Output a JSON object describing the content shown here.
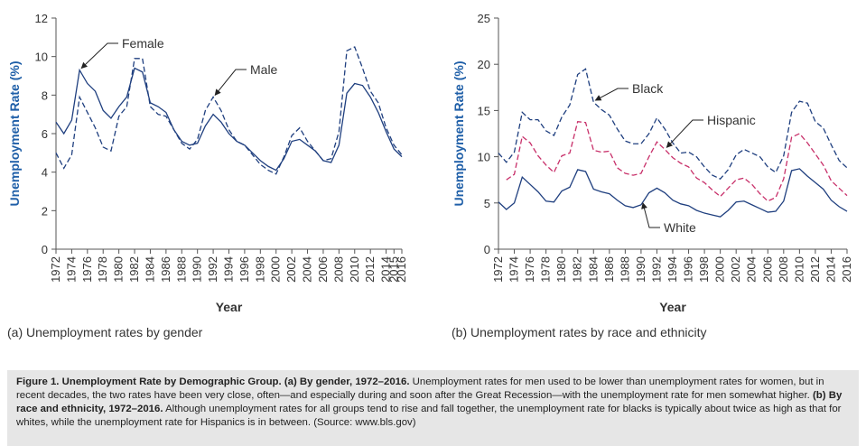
{
  "chart_data": [
    {
      "type": "line",
      "caption": "(a) Unemployment rates by gender",
      "x_label": "Year",
      "y_label": "Unemployment Rate (%)",
      "x": [
        1972,
        1973,
        1974,
        1975,
        1976,
        1977,
        1978,
        1979,
        1980,
        1981,
        1982,
        1983,
        1984,
        1985,
        1986,
        1987,
        1988,
        1989,
        1990,
        1991,
        1992,
        1993,
        1994,
        1995,
        1996,
        1997,
        1998,
        1999,
        2000,
        2001,
        2002,
        2003,
        2004,
        2005,
        2006,
        2007,
        2008,
        2009,
        2010,
        2011,
        2012,
        2013,
        2014,
        2015,
        2016
      ],
      "xlim": [
        1972,
        2016
      ],
      "xticks": [
        1972,
        1974,
        1976,
        1978,
        1980,
        1982,
        1984,
        1986,
        1988,
        1990,
        1992,
        1994,
        1996,
        1998,
        2000,
        2002,
        2004,
        2006,
        2008,
        2010,
        2012,
        2014,
        2015,
        2016
      ],
      "ylim": [
        0,
        12
      ],
      "yticks": [
        0,
        2,
        4,
        6,
        8,
        10,
        12
      ],
      "series": [
        {
          "name": "Female",
          "color": "#1f3f7f",
          "dashed": false,
          "values": [
            6.6,
            6.0,
            6.7,
            9.3,
            8.6,
            8.2,
            7.2,
            6.8,
            7.4,
            7.9,
            9.4,
            9.2,
            7.6,
            7.4,
            7.1,
            6.2,
            5.6,
            5.4,
            5.5,
            6.4,
            7.0,
            6.6,
            6.0,
            5.6,
            5.4,
            5.0,
            4.6,
            4.3,
            4.1,
            4.7,
            5.6,
            5.7,
            5.4,
            5.1,
            4.6,
            4.5,
            5.4,
            8.1,
            8.6,
            8.5,
            7.9,
            7.1,
            6.1,
            5.2,
            4.8
          ]
        },
        {
          "name": "Male",
          "color": "#1f3f7f",
          "dashed": true,
          "values": [
            5.0,
            4.2,
            4.9,
            7.9,
            7.1,
            6.3,
            5.3,
            5.1,
            6.9,
            7.4,
            9.9,
            9.9,
            7.4,
            7.0,
            6.9,
            6.2,
            5.5,
            5.2,
            5.7,
            7.2,
            7.9,
            7.2,
            6.2,
            5.6,
            5.4,
            4.9,
            4.4,
            4.1,
            3.9,
            4.8,
            5.9,
            6.3,
            5.6,
            5.1,
            4.6,
            4.7,
            6.1,
            10.3,
            10.5,
            9.4,
            8.2,
            7.6,
            6.3,
            5.4,
            4.9
          ]
        }
      ]
    },
    {
      "type": "line",
      "caption": "(b) Unemployment rates by race and ethnicity",
      "x_label": "Year",
      "y_label": "Unemployment Rate (%)",
      "x": [
        1972,
        1973,
        1974,
        1975,
        1976,
        1977,
        1978,
        1979,
        1980,
        1981,
        1982,
        1983,
        1984,
        1985,
        1986,
        1987,
        1988,
        1989,
        1990,
        1991,
        1992,
        1993,
        1994,
        1995,
        1996,
        1997,
        1998,
        1999,
        2000,
        2001,
        2002,
        2003,
        2004,
        2005,
        2006,
        2007,
        2008,
        2009,
        2010,
        2011,
        2012,
        2013,
        2014,
        2015,
        2016
      ],
      "xlim": [
        1972,
        2016
      ],
      "xticks": [
        1972,
        1974,
        1976,
        1978,
        1980,
        1982,
        1984,
        1986,
        1988,
        1990,
        1992,
        1994,
        1996,
        1998,
        2000,
        2002,
        2004,
        2006,
        2008,
        2010,
        2012,
        2014,
        2016
      ],
      "ylim": [
        0,
        25
      ],
      "yticks": [
        0,
        5,
        10,
        15,
        20,
        25
      ],
      "series": [
        {
          "name": "Black",
          "color": "#1f3f7f",
          "dashed": true,
          "values": [
            10.4,
            9.4,
            10.5,
            14.8,
            14.0,
            14.0,
            12.8,
            12.3,
            14.3,
            15.6,
            18.9,
            19.5,
            15.9,
            15.1,
            14.5,
            13.0,
            11.7,
            11.4,
            11.4,
            12.5,
            14.2,
            13.0,
            11.5,
            10.4,
            10.5,
            10.0,
            8.9,
            8.0,
            7.6,
            8.6,
            10.2,
            10.8,
            10.4,
            10.0,
            8.9,
            8.3,
            10.1,
            14.8,
            16.0,
            15.8,
            13.8,
            13.1,
            11.3,
            9.6,
            8.8
          ]
        },
        {
          "name": "Hispanic",
          "color": "#c8306a",
          "dashed": true,
          "values": [
            null,
            7.5,
            8.1,
            12.2,
            11.5,
            10.1,
            9.1,
            8.3,
            10.1,
            10.4,
            13.8,
            13.7,
            10.7,
            10.5,
            10.6,
            8.8,
            8.2,
            8.0,
            8.2,
            10.0,
            11.6,
            10.8,
            9.9,
            9.3,
            8.9,
            7.7,
            7.2,
            6.4,
            5.7,
            6.6,
            7.5,
            7.7,
            7.0,
            6.0,
            5.2,
            5.6,
            7.6,
            12.1,
            12.5,
            11.5,
            10.3,
            9.1,
            7.4,
            6.6,
            5.8
          ]
        },
        {
          "name": "White",
          "color": "#1f3f7f",
          "dashed": false,
          "values": [
            5.1,
            4.3,
            5.0,
            7.8,
            7.0,
            6.2,
            5.2,
            5.1,
            6.3,
            6.7,
            8.6,
            8.4,
            6.5,
            6.2,
            6.0,
            5.3,
            4.7,
            4.5,
            4.8,
            6.1,
            6.6,
            6.1,
            5.3,
            4.9,
            4.7,
            4.2,
            3.9,
            3.7,
            3.5,
            4.2,
            5.1,
            5.2,
            4.8,
            4.4,
            4.0,
            4.1,
            5.2,
            8.5,
            8.7,
            7.9,
            7.2,
            6.5,
            5.3,
            4.6,
            4.1
          ]
        }
      ]
    }
  ],
  "figure_caption": {
    "bold_a": "Figure 1. Unemployment Rate by Demographic Group. (a) By gender, 1972–2016.",
    "text_a": " Unemployment rates for men used to be lower than unemployment rates for women, but in recent decades, the two rates have been very close, often—and especially during and soon after the Great Recession—with the unemployment rate for men somewhat higher. ",
    "bold_b": "(b) By race and ethnicity, 1972–2016.",
    "text_b": " Although unemployment rates for all groups tend to rise and fall together, the unemployment rate for blacks is typically about twice as high as that for whites, while the unemployment rate for Hispanics is in between. (Source: www.bls.gov)"
  }
}
